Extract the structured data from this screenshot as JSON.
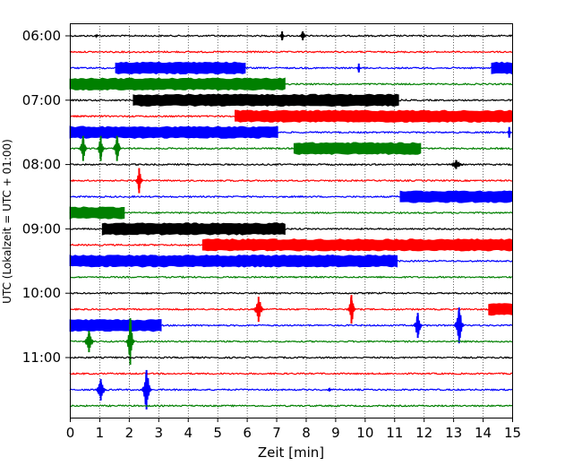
{
  "chart_data": {
    "type": "line",
    "title": "",
    "xlabel": "Zeit  [min]",
    "ylabel": "UTC (Lokalzeit = UTC + 01:00)",
    "xlim": [
      0,
      15
    ],
    "x_ticks": [
      "0",
      "1",
      "2",
      "3",
      "4",
      "5",
      "6",
      "7",
      "8",
      "9",
      "10",
      "11",
      "12",
      "13",
      "14",
      "15"
    ],
    "y_tick_labels": [
      "06:00",
      "07:00",
      "08:00",
      "09:00",
      "10:00",
      "11:00"
    ],
    "y_tick_trace_index": [
      0,
      4,
      8,
      12,
      16,
      20
    ],
    "grid": "vertical dotted",
    "colors": [
      "#000000",
      "#ff0000",
      "#0000ff",
      "#008000"
    ],
    "series": [
      {
        "start": "06:00",
        "color": "#000000",
        "events": [
          {
            "x": 0.9,
            "amp": 1.5,
            "type": "spike",
            "width": 0.05
          },
          {
            "x": 7.2,
            "amp": 5,
            "type": "spike",
            "width": 0.1
          },
          {
            "x": 7.9,
            "amp": 5,
            "type": "spike",
            "width": 0.15
          }
        ]
      },
      {
        "start": "06:15",
        "color": "#ff0000",
        "events": []
      },
      {
        "start": "06:30",
        "color": "#0000ff",
        "events": [
          {
            "x0": 1.55,
            "x1": 5.95,
            "amp": 6,
            "type": "band"
          },
          {
            "x": 9.8,
            "amp": 5,
            "type": "spike",
            "width": 0.05
          },
          {
            "x0": 14.3,
            "x1": 15,
            "amp": 6,
            "type": "band"
          }
        ]
      },
      {
        "start": "06:45",
        "color": "#008000",
        "events": [
          {
            "x0": 0,
            "x1": 7.3,
            "amp": 6,
            "type": "band"
          }
        ]
      },
      {
        "start": "07:00",
        "color": "#000000",
        "events": [
          {
            "x0": 2.15,
            "x1": 11.15,
            "amp": 6,
            "type": "band"
          }
        ]
      },
      {
        "start": "07:15",
        "color": "#ff0000",
        "events": [
          {
            "x0": 5.6,
            "x1": 15,
            "amp": 6,
            "type": "band"
          }
        ]
      },
      {
        "start": "07:30",
        "color": "#0000ff",
        "events": [
          {
            "x0": 0,
            "x1": 7.05,
            "amp": 6,
            "type": "band"
          },
          {
            "x": 14.9,
            "amp": 6,
            "type": "spike",
            "width": 0.08
          }
        ]
      },
      {
        "start": "07:45",
        "color": "#008000",
        "events": [
          {
            "x": 0.45,
            "amp": 14,
            "type": "spike",
            "width": 0.2
          },
          {
            "x": 1.05,
            "amp": 14,
            "type": "spike",
            "width": 0.18
          },
          {
            "x": 1.6,
            "amp": 14,
            "type": "spike",
            "width": 0.2
          },
          {
            "x0": 7.6,
            "x1": 11.9,
            "amp": 6,
            "type": "band"
          }
        ]
      },
      {
        "start": "08:00",
        "color": "#000000",
        "events": [
          {
            "x": 13.1,
            "amp": 5,
            "type": "spike",
            "width": 0.3
          }
        ]
      },
      {
        "start": "08:15",
        "color": "#ff0000",
        "events": [
          {
            "x": 2.35,
            "amp": 14,
            "type": "spike",
            "width": 0.18
          }
        ]
      },
      {
        "start": "08:30",
        "color": "#0000ff",
        "events": [
          {
            "x0": 11.2,
            "x1": 15,
            "amp": 6,
            "type": "band"
          }
        ]
      },
      {
        "start": "08:45",
        "color": "#008000",
        "events": [
          {
            "x0": 0,
            "x1": 1.85,
            "amp": 6,
            "type": "band"
          }
        ]
      },
      {
        "start": "09:00",
        "color": "#000000",
        "events": [
          {
            "x0": 1.1,
            "x1": 7.3,
            "amp": 6,
            "type": "band"
          }
        ]
      },
      {
        "start": "09:15",
        "color": "#ff0000",
        "events": [
          {
            "x0": 4.5,
            "x1": 15,
            "amp": 6,
            "type": "band"
          }
        ]
      },
      {
        "start": "09:30",
        "color": "#0000ff",
        "events": [
          {
            "x0": 0,
            "x1": 11.1,
            "amp": 6,
            "type": "band"
          }
        ]
      },
      {
        "start": "09:45",
        "color": "#008000",
        "events": []
      },
      {
        "start": "10:00",
        "color": "#000000",
        "events": []
      },
      {
        "start": "10:15",
        "color": "#ff0000",
        "events": [
          {
            "x": 6.4,
            "amp": 14,
            "type": "spike",
            "width": 0.25
          },
          {
            "x": 9.55,
            "amp": 16,
            "type": "spike",
            "width": 0.2
          },
          {
            "x0": 14.2,
            "x1": 15,
            "amp": 6,
            "type": "band"
          }
        ]
      },
      {
        "start": "10:30",
        "color": "#0000ff",
        "events": [
          {
            "x0": 0,
            "x1": 3.1,
            "amp": 6,
            "type": "band"
          },
          {
            "x": 11.8,
            "amp": 14,
            "type": "spike",
            "width": 0.22
          },
          {
            "x": 13.2,
            "amp": 20,
            "type": "spike",
            "width": 0.25
          }
        ]
      },
      {
        "start": "10:45",
        "color": "#008000",
        "events": [
          {
            "x": 0.65,
            "amp": 12,
            "type": "spike",
            "width": 0.25
          },
          {
            "x": 2.05,
            "amp": 26,
            "type": "spike",
            "width": 0.2
          }
        ]
      },
      {
        "start": "11:00",
        "color": "#000000",
        "events": []
      },
      {
        "start": "11:15",
        "color": "#ff0000",
        "events": []
      },
      {
        "start": "11:30",
        "color": "#0000ff",
        "events": [
          {
            "x": 1.05,
            "amp": 12,
            "type": "spike",
            "width": 0.25
          },
          {
            "x": 2.6,
            "amp": 22,
            "type": "spike",
            "width": 0.25
          },
          {
            "x": 8.8,
            "amp": 2,
            "type": "spike",
            "width": 0.05
          }
        ]
      },
      {
        "start": "11:45",
        "color": "#008000",
        "events": []
      }
    ]
  }
}
